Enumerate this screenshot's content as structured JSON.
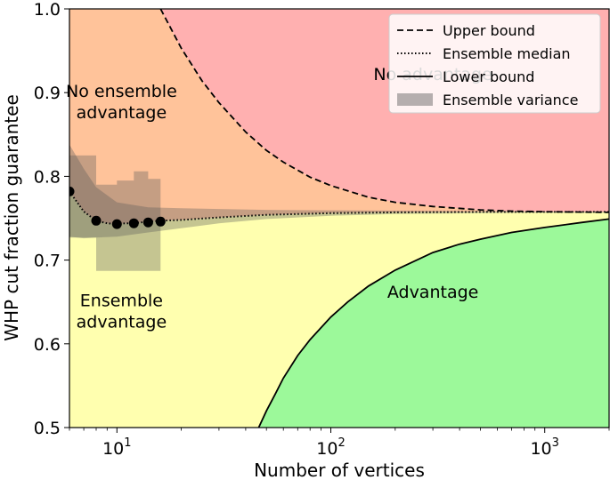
{
  "chart_data": {
    "type": "line",
    "xscale": "log",
    "xlim": [
      6,
      2000
    ],
    "ylim": [
      0.5,
      1.0
    ],
    "xlabel": "Number of vertices",
    "ylabel": "WHP cut fraction guarantee",
    "xticks": [
      {
        "value": 10,
        "base": "10",
        "exp": "1"
      },
      {
        "value": 100,
        "base": "10",
        "exp": "2"
      },
      {
        "value": 1000,
        "base": "10",
        "exp": "3"
      }
    ],
    "yticks": [
      {
        "value": 0.5,
        "label": "0.5"
      },
      {
        "value": 0.6,
        "label": "0.6"
      },
      {
        "value": 0.7,
        "label": "0.7"
      },
      {
        "value": 0.8,
        "label": "0.8"
      },
      {
        "value": 0.9,
        "label": "0.9"
      },
      {
        "value": 1.0,
        "label": "1.0"
      }
    ],
    "regions": [
      {
        "name": "No advantage",
        "color": "#ffb0b0"
      },
      {
        "name": "No ensemble advantage",
        "color": "#ffc39a"
      },
      {
        "name": "Ensemble advantage",
        "color": "#ffffaf"
      },
      {
        "name": "Advantage",
        "color": "#9cf99a"
      }
    ],
    "region_labels": [
      {
        "lines": [
          "No advantage"
        ],
        "x": 300,
        "y": 0.915
      },
      {
        "lines": [
          "No ensemble",
          "advantage"
        ],
        "x": 10.5,
        "y": 0.895
      },
      {
        "lines": [
          "Ensemble",
          "advantage"
        ],
        "x": 10.5,
        "y": 0.645
      },
      {
        "lines": [
          "Advantage"
        ],
        "x": 300,
        "y": 0.655
      }
    ],
    "series": [
      {
        "name": "Upper bound",
        "style": "dashed",
        "x": [
          16,
          20,
          25,
          30,
          40,
          50,
          60,
          80,
          100,
          150,
          200,
          300,
          500,
          700,
          1000,
          1500,
          2000
        ],
        "y": [
          1.0,
          0.953,
          0.914,
          0.888,
          0.853,
          0.831,
          0.817,
          0.799,
          0.789,
          0.775,
          0.769,
          0.764,
          0.76,
          0.7585,
          0.7578,
          0.7573,
          0.757
        ]
      },
      {
        "name": "Ensemble median",
        "style": "dotted",
        "x": [
          6,
          7,
          8,
          9,
          10,
          11,
          12,
          14,
          16,
          20,
          30,
          50,
          100,
          200,
          500,
          1000,
          2000
        ],
        "y": [
          0.782,
          0.758,
          0.747,
          0.744,
          0.743,
          0.744,
          0.744,
          0.746,
          0.747,
          0.748,
          0.751,
          0.754,
          0.756,
          0.757,
          0.7575,
          0.7575,
          0.7575
        ]
      },
      {
        "name": "Lower bound",
        "style": "solid",
        "x": [
          46,
          50,
          55,
          60,
          70,
          80,
          100,
          120,
          150,
          200,
          300,
          400,
          500,
          700,
          1000,
          1500,
          2000
        ],
        "y": [
          0.5,
          0.52,
          0.54,
          0.559,
          0.586,
          0.605,
          0.632,
          0.65,
          0.669,
          0.688,
          0.709,
          0.719,
          0.725,
          0.733,
          0.739,
          0.745,
          0.749
        ]
      }
    ],
    "median_points": {
      "x": [
        6,
        8,
        10,
        12,
        14,
        16
      ],
      "y": [
        0.782,
        0.747,
        0.743,
        0.744,
        0.745,
        0.746
      ]
    },
    "variance": {
      "name": "Ensemble variance",
      "band_x": [
        6,
        7,
        8,
        10,
        14,
        20,
        30,
        50,
        100,
        200,
        500,
        1000,
        2000
      ],
      "band_lower": [
        0.728,
        0.726,
        0.727,
        0.728,
        0.733,
        0.738,
        0.744,
        0.749,
        0.753,
        0.755,
        0.756,
        0.7565,
        0.7565
      ],
      "band_upper": [
        0.838,
        0.809,
        0.787,
        0.769,
        0.763,
        0.762,
        0.761,
        0.76,
        0.7595,
        0.759,
        0.7585,
        0.758,
        0.758
      ],
      "step_x": [
        6,
        8,
        10,
        12,
        14,
        16
      ],
      "step_lower": [
        0.727,
        0.687,
        0.687,
        0.687,
        0.687,
        0.683
      ],
      "step_upper": [
        0.825,
        0.79,
        0.795,
        0.806,
        0.797,
        0.8
      ]
    },
    "legend": {
      "position": "top-right",
      "entries": [
        {
          "label": "Upper bound",
          "style": "dashed"
        },
        {
          "label": "Ensemble median",
          "style": "dotted"
        },
        {
          "label": "Lower bound",
          "style": "solid"
        },
        {
          "label": "Ensemble variance",
          "style": "patch"
        }
      ]
    },
    "grid": false
  }
}
